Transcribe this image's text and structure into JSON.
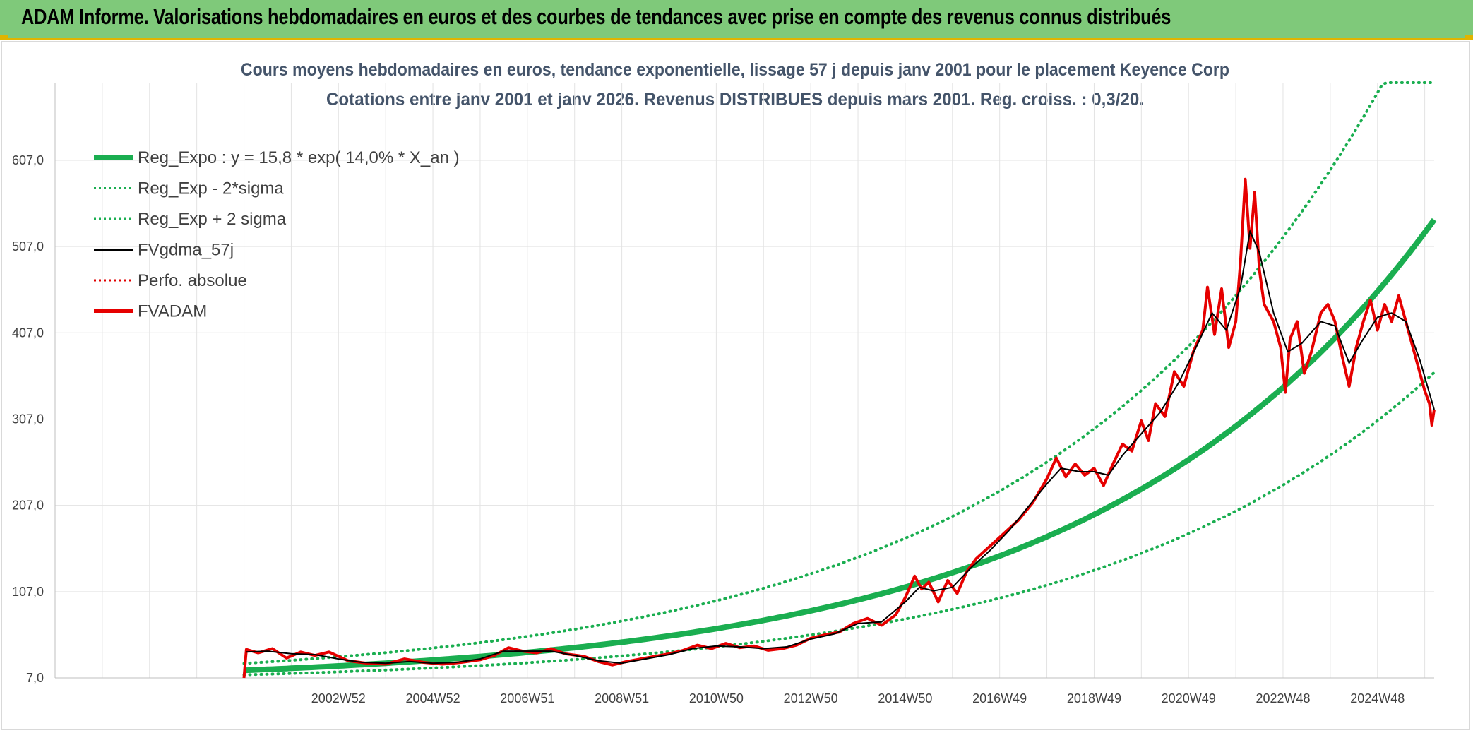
{
  "banner": {
    "title": "ADAM Informe. Valorisations hebdomadaires en euros et des courbes de tendances avec prise en compte des revenus connus distribués"
  },
  "chart_data": {
    "type": "line",
    "title_line1": "Cours moyens hebdomadaires en euros, tendance exponentielle, lissage 57 j depuis janv 2001 pour le placement Keyence Corp",
    "title_line2": "Cotations entre janv 2001 et janv 2026. Revenus DISTRIBUES depuis mars 2001. Reg. croiss. : 0,3/20.",
    "ylim": [
      7,
      697
    ],
    "yticks": [
      "7,0",
      "107,0",
      "207,0",
      "307,0",
      "407,0",
      "507,0",
      "607,0"
    ],
    "ytick_values": [
      7,
      107,
      207,
      307,
      407,
      507,
      607
    ],
    "xlim": [
      1997,
      2026.2
    ],
    "xticks": [
      "2002W52",
      "2004W52",
      "2006W51",
      "2008W51",
      "2010W50",
      "2012W50",
      "2014W50",
      "2016W49",
      "2018W49",
      "2020W49",
      "2022W48",
      "2024W48"
    ],
    "xtick_values": [
      2003,
      2005,
      2007,
      2009,
      2011,
      2013,
      2015,
      2017,
      2019,
      2021,
      2023,
      2025
    ],
    "legend": [
      {
        "name": "Reg_Expo : y = 15,8 * exp( 14,0% *  X_an )",
        "color": "#1aae50",
        "style": "solid-thick"
      },
      {
        "name": "Reg_Exp - 2*sigma",
        "color": "#1aae50",
        "style": "dotted"
      },
      {
        "name": "Reg_Exp + 2 sigma",
        "color": "#1aae50",
        "style": "dotted"
      },
      {
        "name": "FVgdma_57j",
        "color": "#000000",
        "style": "solid"
      },
      {
        "name": "Perfo. absolue",
        "color": "#e00000",
        "style": "dotted"
      },
      {
        "name": "FVADAM",
        "color": "#e60000",
        "style": "solid-thick"
      }
    ],
    "series": [
      {
        "name": "Reg_Expo",
        "a": 15.8,
        "rate": 0.14,
        "x_start": 2001.0,
        "x_end": 2026.2
      },
      {
        "name": "Reg_Exp - 2*sigma",
        "a": 10.6,
        "rate": 0.14,
        "x_start": 2001.0,
        "x_end": 2026.2
      },
      {
        "name": "Reg_Exp + 2 sigma",
        "a": 23.8,
        "rate": 0.14,
        "x_start": 2001.0,
        "x_end": 2026.2,
        "cap": 697
      },
      {
        "name": "FVADAM",
        "points": [
          [
            2001.0,
            7
          ],
          [
            2001.05,
            40
          ],
          [
            2001.3,
            36
          ],
          [
            2001.6,
            41
          ],
          [
            2001.9,
            30
          ],
          [
            2002.2,
            37
          ],
          [
            2002.5,
            33
          ],
          [
            2002.8,
            37
          ],
          [
            2003.2,
            27
          ],
          [
            2003.6,
            24
          ],
          [
            2004.0,
            23
          ],
          [
            2004.4,
            29
          ],
          [
            2004.8,
            25
          ],
          [
            2005.2,
            23
          ],
          [
            2005.6,
            25
          ],
          [
            2006.0,
            28
          ],
          [
            2006.3,
            33
          ],
          [
            2006.6,
            42
          ],
          [
            2006.9,
            38
          ],
          [
            2007.2,
            36
          ],
          [
            2007.5,
            41
          ],
          [
            2007.8,
            35
          ],
          [
            2008.2,
            32
          ],
          [
            2008.5,
            26
          ],
          [
            2008.8,
            22
          ],
          [
            2009.1,
            26
          ],
          [
            2009.4,
            29
          ],
          [
            2009.7,
            32
          ],
          [
            2010.0,
            35
          ],
          [
            2010.3,
            39
          ],
          [
            2010.6,
            45
          ],
          [
            2010.9,
            41
          ],
          [
            2011.2,
            47
          ],
          [
            2011.5,
            42
          ],
          [
            2011.8,
            44
          ],
          [
            2012.1,
            39
          ],
          [
            2012.4,
            41
          ],
          [
            2012.7,
            45
          ],
          [
            2013.0,
            53
          ],
          [
            2013.3,
            57
          ],
          [
            2013.6,
            60
          ],
          [
            2013.9,
            70
          ],
          [
            2014.2,
            76
          ],
          [
            2014.5,
            68
          ],
          [
            2014.8,
            80
          ],
          [
            2015.0,
            100
          ],
          [
            2015.2,
            125
          ],
          [
            2015.35,
            110
          ],
          [
            2015.5,
            118
          ],
          [
            2015.7,
            95
          ],
          [
            2015.9,
            120
          ],
          [
            2016.1,
            105
          ],
          [
            2016.3,
            130
          ],
          [
            2016.5,
            145
          ],
          [
            2016.8,
            160
          ],
          [
            2017.1,
            175
          ],
          [
            2017.4,
            190
          ],
          [
            2017.7,
            210
          ],
          [
            2018.0,
            238
          ],
          [
            2018.2,
            262
          ],
          [
            2018.4,
            240
          ],
          [
            2018.6,
            255
          ],
          [
            2018.8,
            242
          ],
          [
            2019.0,
            250
          ],
          [
            2019.2,
            230
          ],
          [
            2019.4,
            255
          ],
          [
            2019.6,
            278
          ],
          [
            2019.8,
            270
          ],
          [
            2020.0,
            305
          ],
          [
            2020.15,
            282
          ],
          [
            2020.3,
            325
          ],
          [
            2020.5,
            310
          ],
          [
            2020.7,
            362
          ],
          [
            2020.9,
            345
          ],
          [
            2021.1,
            385
          ],
          [
            2021.3,
            410
          ],
          [
            2021.4,
            460
          ],
          [
            2021.55,
            405
          ],
          [
            2021.7,
            458
          ],
          [
            2021.85,
            390
          ],
          [
            2022.0,
            420
          ],
          [
            2022.1,
            490
          ],
          [
            2022.2,
            585
          ],
          [
            2022.3,
            505
          ],
          [
            2022.4,
            570
          ],
          [
            2022.5,
            480
          ],
          [
            2022.6,
            440
          ],
          [
            2022.8,
            420
          ],
          [
            2022.95,
            390
          ],
          [
            2023.05,
            338
          ],
          [
            2023.15,
            400
          ],
          [
            2023.3,
            420
          ],
          [
            2023.45,
            360
          ],
          [
            2023.6,
            385
          ],
          [
            2023.8,
            430
          ],
          [
            2023.95,
            440
          ],
          [
            2024.1,
            420
          ],
          [
            2024.25,
            380
          ],
          [
            2024.4,
            345
          ],
          [
            2024.55,
            390
          ],
          [
            2024.7,
            420
          ],
          [
            2024.85,
            445
          ],
          [
            2025.0,
            410
          ],
          [
            2025.15,
            440
          ],
          [
            2025.3,
            420
          ],
          [
            2025.45,
            450
          ],
          [
            2025.6,
            420
          ],
          [
            2025.75,
            390
          ],
          [
            2025.9,
            360
          ],
          [
            2026.0,
            340
          ],
          [
            2026.1,
            325
          ],
          [
            2026.15,
            300
          ],
          [
            2026.2,
            318
          ]
        ]
      },
      {
        "name": "FVgdma_57j",
        "points": [
          [
            2001.05,
            37
          ],
          [
            2001.5,
            38
          ],
          [
            2002.0,
            35
          ],
          [
            2002.5,
            34
          ],
          [
            2003.0,
            29
          ],
          [
            2003.5,
            25
          ],
          [
            2004.0,
            24
          ],
          [
            2004.5,
            26
          ],
          [
            2005.0,
            24
          ],
          [
            2005.5,
            25
          ],
          [
            2006.0,
            29
          ],
          [
            2006.5,
            38
          ],
          [
            2007.0,
            38
          ],
          [
            2007.5,
            38
          ],
          [
            2008.0,
            33
          ],
          [
            2008.5,
            27
          ],
          [
            2009.0,
            24
          ],
          [
            2009.5,
            29
          ],
          [
            2010.0,
            34
          ],
          [
            2010.5,
            41
          ],
          [
            2011.0,
            44
          ],
          [
            2011.5,
            43
          ],
          [
            2012.0,
            41
          ],
          [
            2012.5,
            43
          ],
          [
            2013.0,
            52
          ],
          [
            2013.5,
            58
          ],
          [
            2014.0,
            70
          ],
          [
            2014.5,
            72
          ],
          [
            2015.0,
            95
          ],
          [
            2015.3,
            112
          ],
          [
            2015.6,
            108
          ],
          [
            2016.0,
            112
          ],
          [
            2016.4,
            135
          ],
          [
            2016.8,
            155
          ],
          [
            2017.2,
            178
          ],
          [
            2017.6,
            205
          ],
          [
            2018.0,
            232
          ],
          [
            2018.3,
            250
          ],
          [
            2018.7,
            246
          ],
          [
            2019.0,
            246
          ],
          [
            2019.3,
            242
          ],
          [
            2019.6,
            265
          ],
          [
            2020.0,
            290
          ],
          [
            2020.4,
            315
          ],
          [
            2020.8,
            350
          ],
          [
            2021.2,
            395
          ],
          [
            2021.5,
            430
          ],
          [
            2021.8,
            410
          ],
          [
            2022.1,
            460
          ],
          [
            2022.3,
            525
          ],
          [
            2022.5,
            500
          ],
          [
            2022.8,
            430
          ],
          [
            2023.1,
            385
          ],
          [
            2023.4,
            395
          ],
          [
            2023.8,
            420
          ],
          [
            2024.1,
            415
          ],
          [
            2024.4,
            372
          ],
          [
            2024.7,
            400
          ],
          [
            2025.0,
            425
          ],
          [
            2025.3,
            430
          ],
          [
            2025.6,
            420
          ],
          [
            2025.9,
            375
          ],
          [
            2026.2,
            318
          ]
        ]
      }
    ]
  }
}
